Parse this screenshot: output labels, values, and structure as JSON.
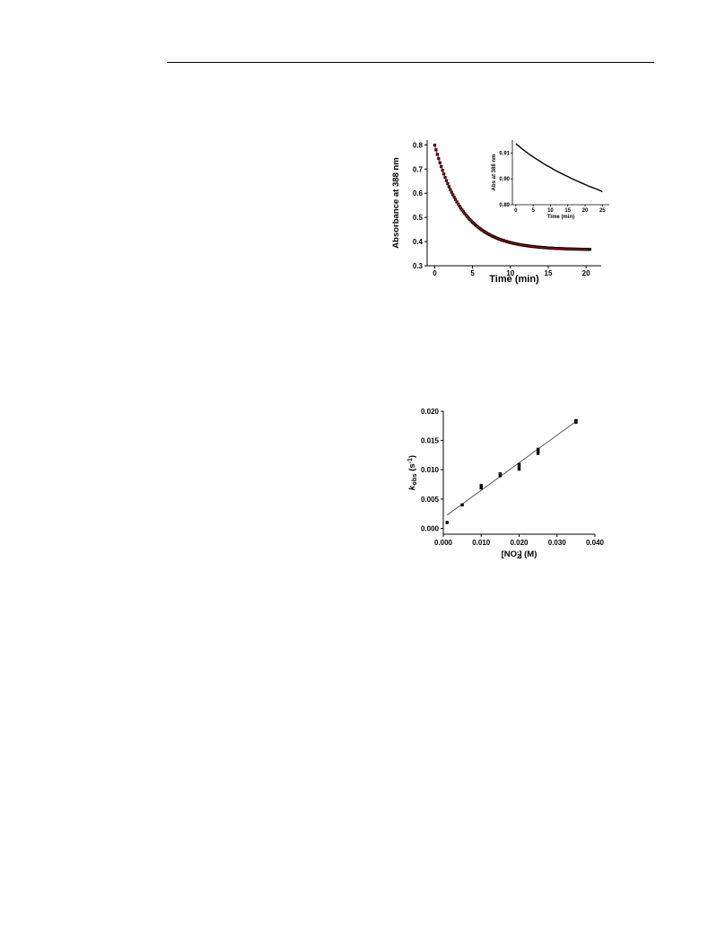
{
  "page": {
    "header_rule": true
  },
  "chart_data": [
    {
      "id": "absorbance_decay",
      "type": "scatter",
      "xlabel": "Time (min)",
      "ylabel": "Absorbance at 388 nm",
      "xlim": [
        -1,
        22
      ],
      "ylim": [
        0.3,
        0.82
      ],
      "xticks": [
        0,
        5,
        10,
        15,
        20
      ],
      "yticks": [
        0.3,
        0.4,
        0.5,
        0.6,
        0.7,
        0.8
      ],
      "series": [
        {
          "marker": "square",
          "color": "#000000",
          "x_range": [
            0,
            20.5
          ],
          "n_points": 120,
          "model": {
            "A_inf": 0.366,
            "A0": 0.799,
            "k_per_min": 0.267
          }
        },
        {
          "line": true,
          "color": "#cc0000",
          "x_range": [
            0,
            20.5
          ],
          "model": {
            "A_inf": 0.366,
            "A0": 0.799,
            "k_per_min": 0.267
          }
        }
      ],
      "inset": {
        "type": "line",
        "xlabel": "Time (min)",
        "ylabel": "Abs at 388 nm",
        "xlim": [
          -1,
          27
        ],
        "ylim": [
          0.89,
          0.915
        ],
        "xticks": [
          0,
          5,
          10,
          15,
          20,
          25
        ],
        "yticks": [
          0.89,
          0.9,
          0.91
        ],
        "ytick_labels": [
          "0.89",
          "0.90",
          "0.91"
        ],
        "x": [
          0,
          1,
          2,
          3,
          4,
          5,
          6,
          7,
          8,
          9,
          10,
          11,
          12,
          13,
          14,
          15,
          16,
          17,
          18,
          19,
          20,
          21,
          22,
          23,
          24,
          25
        ],
        "y": [
          0.9136,
          0.9125,
          0.9114,
          0.9104,
          0.9094,
          0.9085,
          0.9076,
          0.9068,
          0.9059,
          0.9051,
          0.9044,
          0.9036,
          0.9029,
          0.9022,
          0.9015,
          0.9009,
          0.9002,
          0.8996,
          0.899,
          0.8984,
          0.8978,
          0.8972,
          0.8967,
          0.8962,
          0.8957,
          0.895
        ]
      }
    },
    {
      "id": "kobs_vs_nitrite",
      "type": "scatter",
      "xlabel": "[NO2-] (M)",
      "ylabel": "kobs (s-1)",
      "xlim": [
        0,
        0.04
      ],
      "ylim": [
        -0.001,
        0.02
      ],
      "xticks": [
        0.0,
        0.01,
        0.02,
        0.03,
        0.04
      ],
      "xtick_labels": [
        "0.000",
        "0.010",
        "0.020",
        "0.030",
        "0.040"
      ],
      "yticks": [
        0.0,
        0.005,
        0.01,
        0.015,
        0.02
      ],
      "ytick_labels": [
        "0.000",
        "0.005",
        "0.010",
        "0.015",
        "0.020"
      ],
      "points": [
        {
          "x": 0.001,
          "y": 0.001
        },
        {
          "x": 0.005,
          "y": 0.004
        },
        {
          "x": 0.01,
          "y": 0.0069
        },
        {
          "x": 0.01,
          "y": 0.0073
        },
        {
          "x": 0.015,
          "y": 0.009
        },
        {
          "x": 0.015,
          "y": 0.0093
        },
        {
          "x": 0.02,
          "y": 0.0101
        },
        {
          "x": 0.02,
          "y": 0.0105
        },
        {
          "x": 0.02,
          "y": 0.0109
        },
        {
          "x": 0.025,
          "y": 0.0128
        },
        {
          "x": 0.025,
          "y": 0.0132
        },
        {
          "x": 0.025,
          "y": 0.0135
        },
        {
          "x": 0.035,
          "y": 0.0181
        },
        {
          "x": 0.035,
          "y": 0.0184
        }
      ],
      "fit": {
        "slope": 0.47,
        "intercept": 0.0018,
        "x_range": [
          0.001,
          0.0355
        ],
        "color": "#555555"
      }
    }
  ]
}
